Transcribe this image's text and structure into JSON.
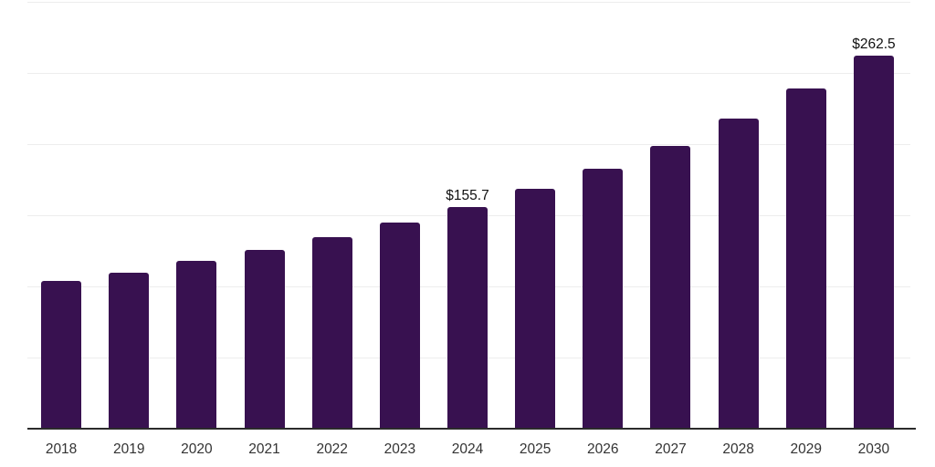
{
  "chart_data": {
    "type": "bar",
    "title": "",
    "xlabel": "",
    "ylabel": "",
    "categories": [
      "2018",
      "2019",
      "2020",
      "2021",
      "2022",
      "2023",
      "2024",
      "2025",
      "2026",
      "2027",
      "2028",
      "2029",
      "2030"
    ],
    "values": [
      103.9,
      109.6,
      117.9,
      125.6,
      134.5,
      144.8,
      155.7,
      168.4,
      182.7,
      199.0,
      217.7,
      238.8,
      262.5
    ],
    "data_labels": [
      null,
      null,
      null,
      null,
      null,
      null,
      "$155.7",
      null,
      null,
      null,
      null,
      null,
      "$262.5"
    ],
    "ylim": [
      0,
      300
    ],
    "gridline_values": [
      50,
      100,
      150,
      200,
      250,
      300
    ],
    "grid": "horizontal light gridlines, no y-axis tick labels",
    "legend_position": "none",
    "currency_prefix": "$"
  },
  "colors": {
    "bar": "#381150",
    "gridline": "#ededed",
    "axis_line": "#2b2b2b",
    "x_tick_label": "#333333",
    "data_label": "#111111",
    "background": "#ffffff"
  }
}
